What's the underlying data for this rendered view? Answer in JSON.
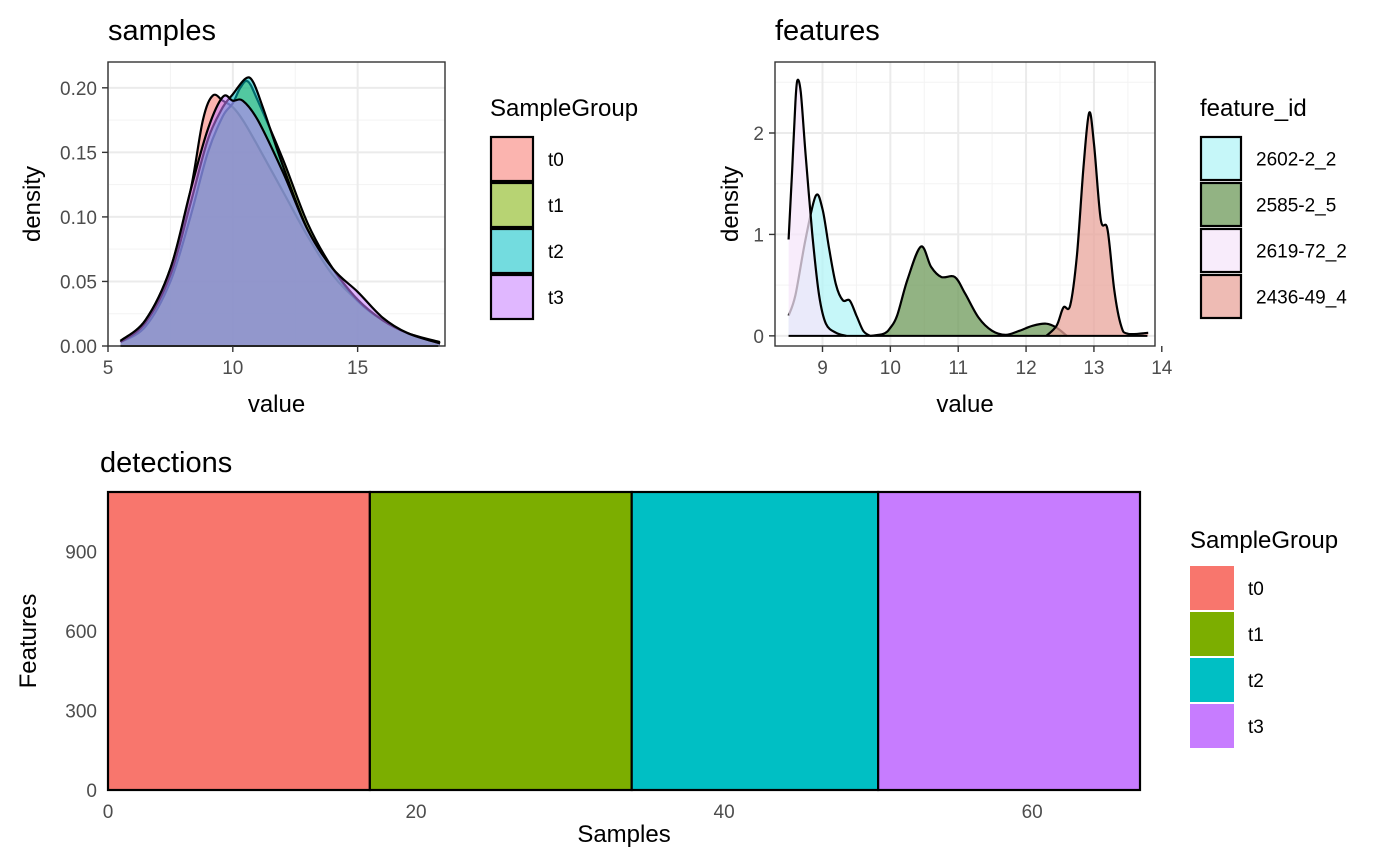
{
  "chart_data": [
    {
      "id": "samples",
      "type": "area",
      "title": "samples",
      "xlabel": "value",
      "ylabel": "density",
      "xlim": [
        5,
        18.5
      ],
      "ylim": [
        0,
        0.22
      ],
      "xticks": [
        5,
        10,
        15
      ],
      "yticks": [
        0.0,
        0.05,
        0.1,
        0.15,
        0.2
      ],
      "ytick_labels": [
        "0.00",
        "0.05",
        "0.10",
        "0.15",
        "0.20"
      ],
      "grid": true,
      "legend": {
        "title": "SampleGroup",
        "position": "right"
      },
      "series": [
        {
          "name": "t0",
          "color": "#F8766D",
          "points": [
            [
              5.5,
              0.004
            ],
            [
              6.5,
              0.02
            ],
            [
              7.5,
              0.06
            ],
            [
              8.3,
              0.12
            ],
            [
              8.8,
              0.175
            ],
            [
              9.2,
              0.194
            ],
            [
              9.6,
              0.19
            ],
            [
              10.0,
              0.185
            ],
            [
              10.4,
              0.175
            ],
            [
              11.0,
              0.155
            ],
            [
              12.0,
              0.12
            ],
            [
              13.0,
              0.085
            ],
            [
              14.0,
              0.055
            ],
            [
              15.0,
              0.035
            ],
            [
              16.0,
              0.02
            ],
            [
              17.0,
              0.01
            ],
            [
              18.3,
              0.002
            ]
          ]
        },
        {
          "name": "t1",
          "color": "#7CAE00",
          "points": [
            [
              5.5,
              0.003
            ],
            [
              6.5,
              0.015
            ],
            [
              7.5,
              0.05
            ],
            [
              8.3,
              0.1
            ],
            [
              9.0,
              0.15
            ],
            [
              9.6,
              0.178
            ],
            [
              10.0,
              0.188
            ],
            [
              10.3,
              0.2
            ],
            [
              10.6,
              0.205
            ],
            [
              11.0,
              0.19
            ],
            [
              12.0,
              0.145
            ],
            [
              13.0,
              0.095
            ],
            [
              14.0,
              0.06
            ],
            [
              15.0,
              0.035
            ],
            [
              16.0,
              0.02
            ],
            [
              17.0,
              0.01
            ],
            [
              18.3,
              0.003
            ]
          ]
        },
        {
          "name": "t2",
          "color": "#00BFC4",
          "points": [
            [
              5.5,
              0.003
            ],
            [
              6.5,
              0.018
            ],
            [
              7.5,
              0.055
            ],
            [
              8.3,
              0.11
            ],
            [
              9.0,
              0.16
            ],
            [
              9.6,
              0.185
            ],
            [
              10.0,
              0.195
            ],
            [
              10.5,
              0.207
            ],
            [
              10.8,
              0.205
            ],
            [
              11.2,
              0.185
            ],
            [
              12.0,
              0.14
            ],
            [
              13.0,
              0.09
            ],
            [
              14.0,
              0.06
            ],
            [
              15.0,
              0.036
            ],
            [
              16.0,
              0.02
            ],
            [
              17.0,
              0.01
            ],
            [
              18.3,
              0.002
            ]
          ]
        },
        {
          "name": "t3",
          "color": "#C77CFF",
          "points": [
            [
              5.5,
              0.004
            ],
            [
              6.5,
              0.02
            ],
            [
              7.5,
              0.06
            ],
            [
              8.3,
              0.12
            ],
            [
              9.0,
              0.168
            ],
            [
              9.6,
              0.193
            ],
            [
              10.0,
              0.19
            ],
            [
              10.4,
              0.19
            ],
            [
              11.0,
              0.175
            ],
            [
              12.0,
              0.135
            ],
            [
              13.0,
              0.09
            ],
            [
              14.0,
              0.06
            ],
            [
              15.0,
              0.042
            ],
            [
              16.0,
              0.022
            ],
            [
              17.0,
              0.01
            ],
            [
              18.3,
              0.002
            ]
          ]
        }
      ]
    },
    {
      "id": "features",
      "type": "area",
      "title": "features",
      "xlabel": "value",
      "ylabel": "density",
      "xlim": [
        8.3,
        13.9
      ],
      "ylim": [
        -0.1,
        2.7
      ],
      "xticks": [
        9,
        10,
        11,
        12,
        13,
        14
      ],
      "yticks": [
        0,
        1,
        2
      ],
      "ytick_labels": [
        "0",
        "1",
        "2"
      ],
      "grid": true,
      "legend": {
        "title": "feature_id",
        "position": "right"
      },
      "series": [
        {
          "name": "2602-2_2",
          "color": "#B3F4F7",
          "points": [
            [
              8.5,
              0.2
            ],
            [
              8.6,
              0.4
            ],
            [
              8.75,
              0.95
            ],
            [
              8.9,
              1.38
            ],
            [
              9.0,
              1.25
            ],
            [
              9.1,
              0.85
            ],
            [
              9.2,
              0.5
            ],
            [
              9.3,
              0.35
            ],
            [
              9.4,
              0.35
            ],
            [
              9.5,
              0.2
            ],
            [
              9.6,
              0.05
            ],
            [
              9.7,
              0.0
            ]
          ]
        },
        {
          "name": "2585-2_5",
          "color": "#6E9A5A",
          "points": [
            [
              9.7,
              0.0
            ],
            [
              9.9,
              0.02
            ],
            [
              10.0,
              0.08
            ],
            [
              10.1,
              0.2
            ],
            [
              10.25,
              0.55
            ],
            [
              10.45,
              0.88
            ],
            [
              10.6,
              0.68
            ],
            [
              10.75,
              0.58
            ],
            [
              10.95,
              0.58
            ],
            [
              11.1,
              0.42
            ],
            [
              11.3,
              0.18
            ],
            [
              11.5,
              0.05
            ],
            [
              11.7,
              0.01
            ],
            [
              11.9,
              0.05
            ],
            [
              12.1,
              0.1
            ],
            [
              12.3,
              0.12
            ],
            [
              12.45,
              0.08
            ],
            [
              12.6,
              0.0
            ]
          ]
        },
        {
          "name": "2619-72_2",
          "color": "#F6E6FA",
          "points": [
            [
              8.5,
              0.95
            ],
            [
              8.55,
              1.6
            ],
            [
              8.6,
              2.3
            ],
            [
              8.63,
              2.52
            ],
            [
              8.68,
              2.4
            ],
            [
              8.75,
              1.8
            ],
            [
              8.85,
              1.0
            ],
            [
              8.95,
              0.4
            ],
            [
              9.05,
              0.12
            ],
            [
              9.2,
              0.03
            ],
            [
              9.35,
              0.0
            ]
          ]
        },
        {
          "name": "2436-49_4",
          "color": "#E8A49B",
          "points": [
            [
              12.3,
              0.0
            ],
            [
              12.45,
              0.1
            ],
            [
              12.55,
              0.28
            ],
            [
              12.65,
              0.3
            ],
            [
              12.75,
              0.8
            ],
            [
              12.85,
              1.7
            ],
            [
              12.93,
              2.2
            ],
            [
              13.0,
              1.9
            ],
            [
              13.1,
              1.15
            ],
            [
              13.2,
              1.05
            ],
            [
              13.3,
              0.45
            ],
            [
              13.4,
              0.1
            ],
            [
              13.5,
              0.02
            ],
            [
              13.8,
              0.03
            ]
          ]
        }
      ]
    },
    {
      "id": "detections",
      "type": "bar",
      "title": "detections",
      "xlabel": "Samples",
      "ylabel": "Features",
      "xlim": [
        0,
        67
      ],
      "ylim": [
        0,
        1125
      ],
      "xticks": [
        0,
        20,
        40,
        60
      ],
      "yticks": [
        0,
        300,
        600,
        900
      ],
      "grid": false,
      "legend": {
        "title": "SampleGroup",
        "position": "right"
      },
      "bars": [
        {
          "name": "t0",
          "x0": 0,
          "x1": 17,
          "value": 1125,
          "color": "#F8766D"
        },
        {
          "name": "t1",
          "x0": 17,
          "x1": 34,
          "value": 1125,
          "color": "#7CAE00"
        },
        {
          "name": "t2",
          "x0": 34,
          "x1": 50,
          "value": 1125,
          "color": "#00BFC4"
        },
        {
          "name": "t3",
          "x0": 50,
          "x1": 67,
          "value": 1125,
          "color": "#C77CFF"
        }
      ]
    }
  ]
}
